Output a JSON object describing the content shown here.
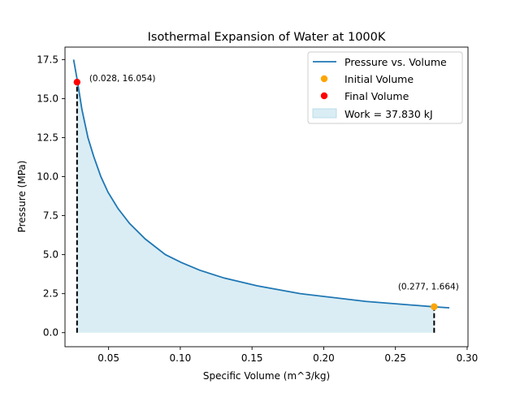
{
  "chart_data": {
    "type": "line",
    "title": "Isothermal Expansion of Water at 1000K",
    "xlabel": "Specific Volume (m^3/kg)",
    "ylabel": "Pressure (MPa)",
    "xlim": [
      0.0196,
      0.3006
    ],
    "ylim": [
      -0.9,
      18.3
    ],
    "xticks": [
      0.05,
      0.1,
      0.15,
      0.2,
      0.25,
      0.3
    ],
    "xtick_labels": [
      "0.05",
      "0.10",
      "0.15",
      "0.20",
      "0.25",
      "0.30"
    ],
    "yticks": [
      0,
      2.5,
      5.0,
      7.5,
      10.0,
      12.5,
      15.0,
      17.5
    ],
    "ytick_labels": [
      "0.0",
      "2.5",
      "5.0",
      "7.5",
      "10.0",
      "12.5",
      "15.0",
      "17.5"
    ],
    "grid": false,
    "legend_position": "top-right",
    "series": [
      {
        "name": "Pressure vs. Volume",
        "color": "#1f77b4",
        "x": [
          0.0256,
          0.0284,
          0.0314,
          0.0356,
          0.0396,
          0.0446,
          0.0496,
          0.0566,
          0.0646,
          0.0756,
          0.0896,
          0.1006,
          0.1136,
          0.1306,
          0.1536,
          0.1836,
          0.2296,
          0.2766,
          0.2876
        ],
        "y": [
          17.5,
          16.05,
          14.3,
          12.5,
          11.3,
          10.0,
          9.0,
          7.95,
          7.0,
          6.0,
          5.0,
          4.5,
          4.0,
          3.5,
          3.0,
          2.5,
          2.0,
          1.66,
          1.59
        ]
      }
    ],
    "markers": [
      {
        "name": "Initial Volume",
        "color": "#ffa500",
        "x": 0.277,
        "y": 1.664,
        "label": "(0.277, 1.664)"
      },
      {
        "name": "Final Volume",
        "color": "#ff0000",
        "x": 0.028,
        "y": 16.054,
        "label": "(0.028, 16.054)"
      }
    ],
    "fill": {
      "name": "Work = 37.830 kJ",
      "color": "#add8e6",
      "from_x": 0.028,
      "to_x": 0.277
    },
    "vlines": [
      {
        "x": 0.028,
        "y": 16.054
      },
      {
        "x": 0.277,
        "y": 1.664
      }
    ]
  }
}
